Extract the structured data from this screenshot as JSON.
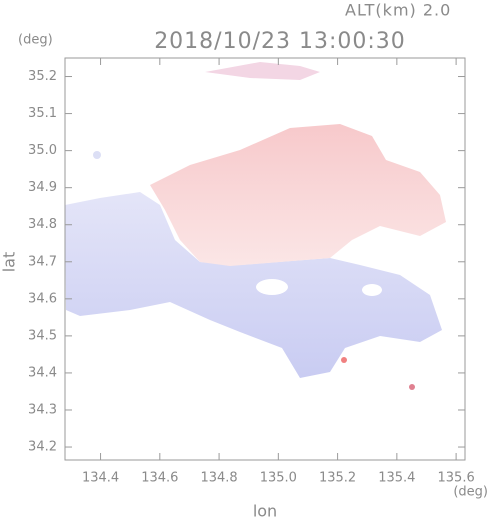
{
  "chart_data": {
    "type": "image",
    "title": "2018/10/23 13:00:30",
    "subtitle": "ALT(km) 2.0",
    "y_unit": "(deg)",
    "x_unit": "(deg)",
    "y_label": "lat",
    "x_label": "lon",
    "xlim": [
      134.28,
      135.63
    ],
    "xticks": [
      134.4,
      134.6,
      134.8,
      {
        "value": 135,
        "label": "135.0"
      },
      135.2,
      135.4,
      135.6
    ],
    "ylim": [
      34.165,
      35.25
    ],
    "yticks": [
      34.2,
      34.3,
      34.4,
      34.5,
      34.6,
      34.7,
      34.8,
      34.9,
      {
        "value": 35,
        "label": "35.0"
      },
      35.1,
      35.2
    ]
  }
}
